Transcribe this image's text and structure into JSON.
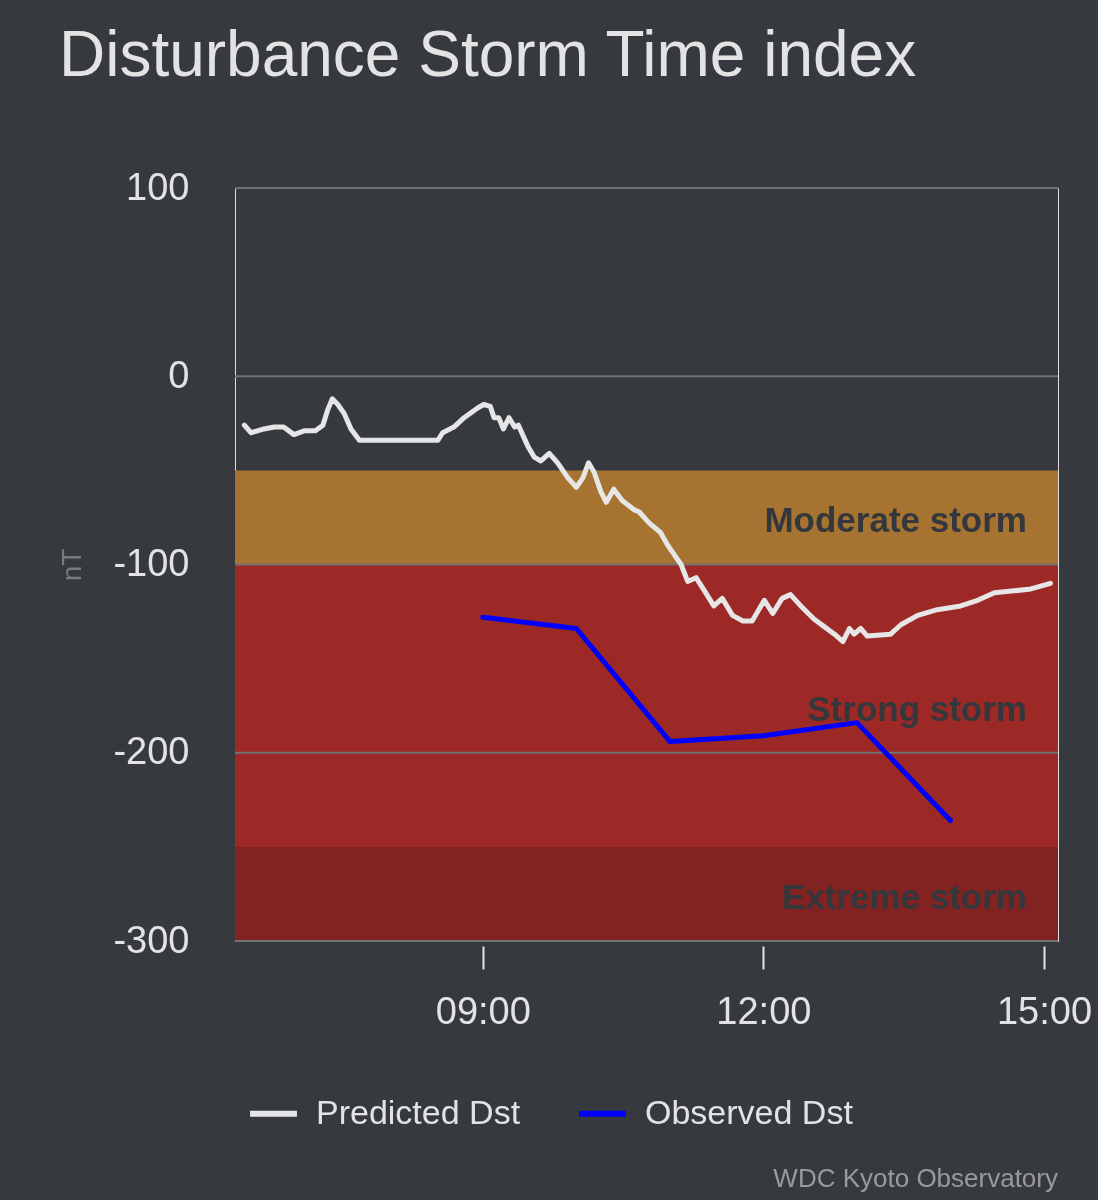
{
  "chart_data": {
    "type": "line",
    "title": "Disturbance Storm Time index",
    "ylabel": "nT",
    "xlim": [
      6.35,
      15.15
    ],
    "xticks": [
      {
        "value": 9,
        "label": "09:00"
      },
      {
        "value": 12,
        "label": "12:00"
      },
      {
        "value": 15,
        "label": "15:00"
      }
    ],
    "ylim": [
      -300,
      100
    ],
    "yticks": [
      100,
      0,
      -100,
      -200,
      -300
    ],
    "grid": "y",
    "legend": "bottom",
    "marker": "none",
    "line_style": "solid",
    "bands": [
      {
        "axis": "y",
        "from": -50,
        "to": -100,
        "label": "Moderate storm",
        "color": "#a67430"
      },
      {
        "axis": "y",
        "from": -100,
        "to": -250,
        "label": "Strong storm",
        "color": "#9c2926"
      },
      {
        "axis": "y",
        "from": -250,
        "to": -300,
        "label": "Extreme storm",
        "color": "#822321"
      }
    ],
    "series": [
      {
        "name": "Predicted Dst",
        "color": "#e6e6e6",
        "x": [
          6.45,
          6.52,
          6.66,
          6.77,
          6.87,
          6.98,
          7.09,
          7.21,
          7.29,
          7.34,
          7.39,
          7.45,
          7.52,
          7.59,
          7.68,
          8.52,
          8.57,
          8.69,
          8.8,
          8.94,
          9.01,
          9.08,
          9.12,
          9.17,
          9.22,
          9.28,
          9.34,
          9.38,
          9.48,
          9.55,
          9.62,
          9.71,
          9.8,
          9.91,
          10.0,
          10.07,
          10.13,
          10.19,
          10.26,
          10.32,
          10.4,
          10.49,
          10.62,
          10.67,
          10.78,
          10.9,
          10.98,
          11.05,
          11.12,
          11.19,
          11.28,
          11.37,
          11.47,
          11.56,
          11.67,
          11.78,
          11.88,
          12.01,
          12.1,
          12.2,
          12.29,
          12.4,
          12.54,
          12.65,
          12.76,
          12.85,
          12.92,
          12.97,
          13.04,
          13.11,
          13.36,
          13.47,
          13.65,
          13.86,
          14.11,
          14.29,
          14.47,
          14.68,
          14.86,
          15.07
        ],
        "values": [
          -26,
          -30,
          -28,
          -27,
          -27,
          -31,
          -29,
          -29,
          -26,
          -18,
          -12,
          -15,
          -20,
          -28,
          -34,
          -34,
          -30,
          -27,
          -22,
          -17,
          -15,
          -16,
          -22,
          -22,
          -28,
          -22,
          -27,
          -26,
          -37,
          -43,
          -45,
          -41,
          -46,
          -54,
          -59,
          -54,
          -46,
          -51,
          -61,
          -67,
          -60,
          -66,
          -71,
          -72,
          -78,
          -83,
          -90,
          -95,
          -100,
          -109,
          -107,
          -114,
          -122,
          -118,
          -127,
          -130,
          -130,
          -119,
          -126,
          -118,
          -116,
          -122,
          -129,
          -133,
          -137,
          -141,
          -134,
          -137,
          -134,
          -138,
          -137,
          -132,
          -127,
          -124,
          -122,
          -119,
          -115,
          -114,
          -113,
          -110
        ]
      },
      {
        "name": "Observed Dst",
        "color": "#0000ff",
        "x": [
          9,
          10,
          11,
          12,
          13,
          14
        ],
        "values": [
          -128,
          -134,
          -194,
          -191,
          -184,
          -236
        ]
      }
    ],
    "annotations": [
      "WDC Kyoto Observatory"
    ]
  }
}
